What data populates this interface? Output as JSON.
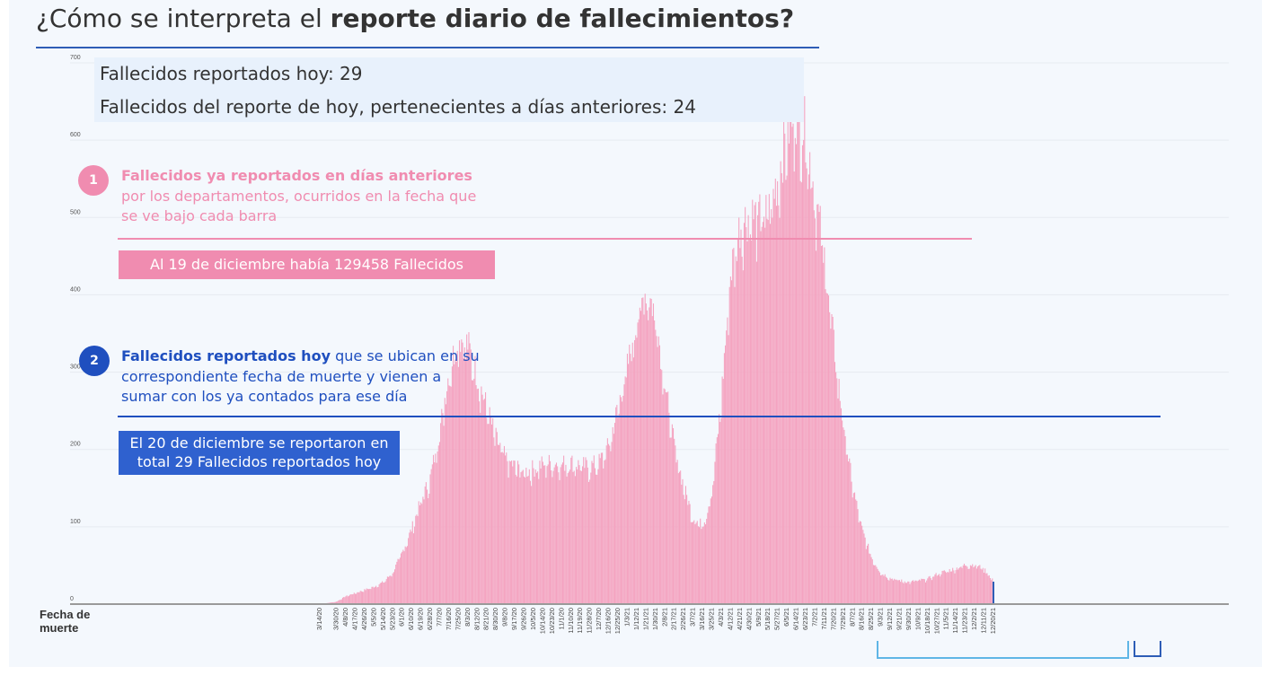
{
  "header": {
    "title_prefix": "¿Cómo se interpreta el ",
    "title_bold": "reporte diario de fallecimientos?"
  },
  "info_box": {
    "line1": "Fallecidos reportados hoy: 29",
    "line2": "Fallecidos del reporte de hoy, pertenecientes a días anteriores: 24"
  },
  "annotations": {
    "step1": {
      "number": "1",
      "bold": "Fallecidos ya reportados en días anteriores",
      "rest": " por los departamentos, ocurridos en la fecha que se ve bajo cada barra",
      "callout": "Al 19 de diciembre había 129458 Fallecidos",
      "color": "#f08cb0"
    },
    "step2": {
      "number": "2",
      "bold": "Fallecidos reportados hoy",
      "rest": " que se ubican en su correspondiente fecha de muerte y vienen a sumar con los ya contados para ese día",
      "callout": "El 20 de diciembre se reportaron en total 29 Fallecidos reportados hoy",
      "color": "#1f4fbf"
    }
  },
  "chart_data": {
    "type": "bar",
    "xlabel": "Fecha de muerte",
    "ylabel": "",
    "ylim": [
      0,
      700
    ],
    "yticks": [
      0,
      100,
      200,
      300,
      400,
      500,
      600,
      700
    ],
    "grid": true,
    "x_range": [
      "3/14/20",
      "12/20/21"
    ],
    "x_tick_labels": [
      "3/14/20",
      "3/30/20",
      "4/8/20",
      "4/17/20",
      "4/26/20",
      "5/5/20",
      "5/14/20",
      "5/23/20",
      "6/1/20",
      "6/10/20",
      "6/19/20",
      "6/28/20",
      "7/7/20",
      "7/16/20",
      "7/25/20",
      "8/3/20",
      "8/12/20",
      "8/21/20",
      "8/30/20",
      "9/8/20",
      "9/17/20",
      "9/26/20",
      "10/5/20",
      "10/14/20",
      "10/23/20",
      "11/1/20",
      "11/10/20",
      "11/19/20",
      "11/28/20",
      "12/7/20",
      "12/16/20",
      "12/25/20",
      "1/3/21",
      "1/12/21",
      "1/21/21",
      "1/30/21",
      "2/8/21",
      "2/17/21",
      "2/26/21",
      "3/7/21",
      "3/16/21",
      "3/25/21",
      "4/3/21",
      "4/12/21",
      "4/21/21",
      "4/30/21",
      "5/9/21",
      "5/18/21",
      "5/27/21",
      "6/5/21",
      "6/14/21",
      "6/23/21",
      "7/2/21",
      "7/11/21",
      "7/20/21",
      "7/29/21",
      "8/7/21",
      "8/16/21",
      "8/25/21",
      "9/3/21",
      "9/12/21",
      "9/21/21",
      "9/30/21",
      "10/9/21",
      "10/18/21",
      "10/27/21",
      "11/5/21",
      "11/14/21",
      "11/23/21",
      "12/2/21",
      "12/11/21",
      "12/20/21"
    ],
    "daily_deaths_approx_knots": [
      [
        "3/14/20",
        0
      ],
      [
        "3/30/20",
        3
      ],
      [
        "4/8/20",
        10
      ],
      [
        "4/17/20",
        14
      ],
      [
        "4/26/20",
        18
      ],
      [
        "5/5/20",
        22
      ],
      [
        "5/14/20",
        28
      ],
      [
        "5/23/20",
        40
      ],
      [
        "6/1/20",
        65
      ],
      [
        "6/10/20",
        95
      ],
      [
        "6/19/20",
        130
      ],
      [
        "6/28/20",
        160
      ],
      [
        "7/7/20",
        220
      ],
      [
        "7/16/20",
        295
      ],
      [
        "7/25/20",
        340
      ],
      [
        "8/3/20",
        330
      ],
      [
        "8/12/20",
        290
      ],
      [
        "8/21/20",
        250
      ],
      [
        "8/30/20",
        210
      ],
      [
        "9/8/20",
        185
      ],
      [
        "9/17/20",
        175
      ],
      [
        "9/26/20",
        168
      ],
      [
        "10/5/20",
        172
      ],
      [
        "10/14/20",
        178
      ],
      [
        "10/23/20",
        180
      ],
      [
        "11/1/20",
        178
      ],
      [
        "11/10/20",
        180
      ],
      [
        "11/19/20",
        176
      ],
      [
        "11/28/20",
        175
      ],
      [
        "12/7/20",
        180
      ],
      [
        "12/16/20",
        200
      ],
      [
        "12/25/20",
        250
      ],
      [
        "1/3/21",
        300
      ],
      [
        "1/12/21",
        360
      ],
      [
        "1/21/21",
        400
      ],
      [
        "1/30/21",
        370
      ],
      [
        "2/8/21",
        280
      ],
      [
        "2/17/21",
        200
      ],
      [
        "2/26/21",
        150
      ],
      [
        "3/7/21",
        110
      ],
      [
        "3/16/21",
        100
      ],
      [
        "3/25/21",
        140
      ],
      [
        "4/3/21",
        260
      ],
      [
        "4/12/21",
        420
      ],
      [
        "4/21/21",
        480
      ],
      [
        "4/30/21",
        495
      ],
      [
        "5/9/21",
        490
      ],
      [
        "5/18/21",
        495
      ],
      [
        "5/27/21",
        540
      ],
      [
        "6/5/21",
        600
      ],
      [
        "6/14/21",
        625
      ],
      [
        "6/23/21",
        600
      ],
      [
        "7/2/21",
        520
      ],
      [
        "7/11/21",
        440
      ],
      [
        "7/20/21",
        330
      ],
      [
        "7/29/21",
        230
      ],
      [
        "8/7/21",
        150
      ],
      [
        "8/16/21",
        95
      ],
      [
        "8/25/21",
        60
      ],
      [
        "9/3/21",
        40
      ],
      [
        "9/12/21",
        33
      ],
      [
        "9/21/21",
        30
      ],
      [
        "9/30/21",
        28
      ],
      [
        "10/9/21",
        30
      ],
      [
        "10/18/21",
        32
      ],
      [
        "10/27/21",
        38
      ],
      [
        "11/5/21",
        42
      ],
      [
        "11/14/21",
        45
      ],
      [
        "11/23/21",
        50
      ],
      [
        "12/2/21",
        50
      ],
      [
        "12/11/21",
        45
      ],
      [
        "12/20/21",
        29
      ]
    ],
    "reported_today_total": 29,
    "reported_today_prior_days": 24
  },
  "colors": {
    "bars": "#f4a3c0",
    "bars_edge": "#ec8fb1",
    "axis": "#9a9a9a",
    "grid": "#e6ebf1",
    "accent_blue": "#2e5db6",
    "accent_pink": "#f08cb0",
    "bracket_light": "#5fb6e6",
    "bracket_dark": "#2e5db6"
  }
}
